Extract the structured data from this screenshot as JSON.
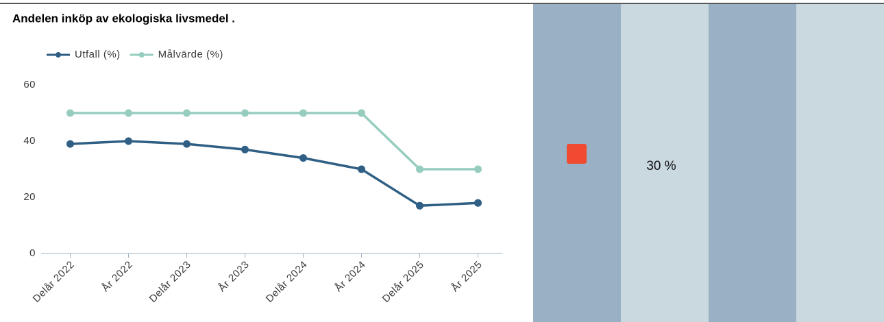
{
  "chart_data": {
    "type": "line",
    "title": "Andelen inköp av ekologiska livsmedel .",
    "categories": [
      "Delår 2022",
      "År 2022",
      "Delår 2023",
      "År 2023",
      "Delår 2024",
      "År 2024",
      "Delår 2025",
      "År 2025"
    ],
    "series": [
      {
        "name": "Utfall (%)",
        "color": "#2f5f84",
        "values": [
          39,
          40,
          39,
          37,
          34,
          30,
          17,
          18
        ]
      },
      {
        "name": "Målvärde (%)",
        "color": "#96cdbf",
        "values": [
          50,
          50,
          50,
          50,
          50,
          50,
          30,
          30
        ]
      }
    ],
    "ylim": [
      0,
      60
    ],
    "yticks": [
      0,
      20,
      40,
      60
    ],
    "grid": false,
    "legend": "top-left"
  },
  "panel": {
    "text": "30 %"
  }
}
